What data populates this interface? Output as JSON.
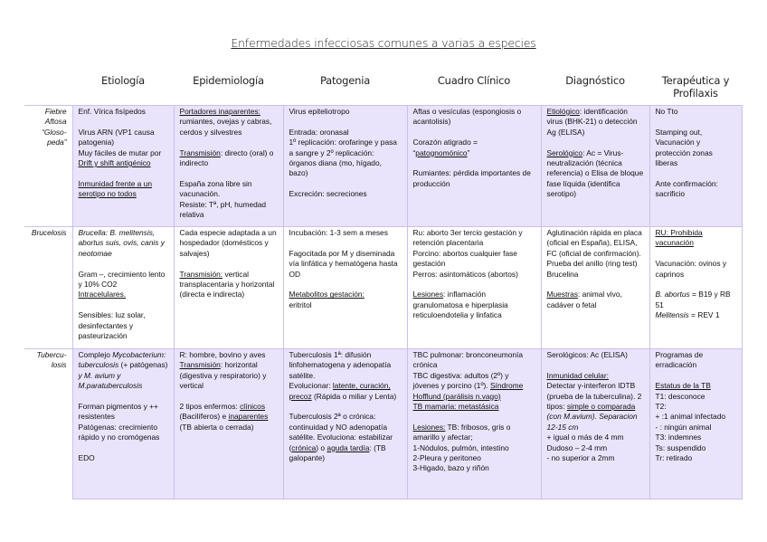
{
  "title": "Enfermedades infecciosas comunes a varias a especies",
  "columns": [
    "Etiología",
    "Epidemiología",
    "Patogenia",
    "Cuadro Clínico",
    "Diagnóstico",
    "Terapéutica y Profilaxis"
  ],
  "colors": {
    "row_shade": "#e9e4fb",
    "border": "#cdbfe9"
  },
  "rows": [
    {
      "label": "Fiebre Aftosa “Gloso-peda”",
      "shade": true,
      "cells": [
        [
          [
            {
              "t": "Enf. Vírica fisípedos"
            }
          ],
          [],
          [
            {
              "t": "Virus ARN (VP1 causa patogenia)"
            }
          ],
          [
            {
              "t": "Muy fáciles de mutar por "
            },
            {
              "t": "Drift y shift antigénico",
              "s": "u"
            }
          ],
          [],
          [
            {
              "t": "Inmunidad frente a un serotipo no todos",
              "s": "u"
            }
          ]
        ],
        [
          [
            {
              "t": "Portadores inaparentes:",
              "s": "u"
            },
            {
              "t": " rumiantes, ovejas y cabras, cerdos y silvestres"
            }
          ],
          [],
          [
            {
              "t": "Transmisión",
              "s": "u"
            },
            {
              "t": ": directo (oral) o indirecto"
            }
          ],
          [],
          [
            {
              "t": "España zona libre sin vacunación."
            }
          ],
          [
            {
              "t": "Resiste: Tª, pH, humedad relativa"
            }
          ]
        ],
        [
          [
            {
              "t": "Virus epiteliotropo"
            }
          ],
          [],
          [
            {
              "t": "Entrada: oronasal"
            }
          ],
          [
            {
              "t": "1º replicación: orofaringe y pasa a sangre y 2º replicación: órganos diana (mo, hígado, bazo)"
            }
          ],
          [],
          [
            {
              "t": "Excreción: secreciones"
            }
          ]
        ],
        [
          [
            {
              "t": "Aftas o vesículas (espongiosis o acantolisis)"
            }
          ],
          [],
          [
            {
              "t": "Corazón atigrado = “"
            },
            {
              "t": "patognomónico",
              "s": "u"
            },
            {
              "t": "”"
            }
          ],
          [],
          [
            {
              "t": "Rumiantes: pérdida importantes de producción"
            }
          ]
        ],
        [
          [
            {
              "t": "Etiológico",
              "s": "u"
            },
            {
              "t": ": identificación virus (BHK-21) o detección Ag (ELISA)"
            }
          ],
          [],
          [
            {
              "t": "Serológico",
              "s": "u"
            },
            {
              "t": ": Ac = Virus-neutralización (técnica referencia) o Elisa de bloque fase líquida (identifica serotipo)"
            }
          ]
        ],
        [
          [
            {
              "t": "No Tto"
            }
          ],
          [],
          [
            {
              "t": "Stamping out, Vacunación y protección zonas liberas"
            }
          ],
          [],
          [
            {
              "t": "Ante confirmación: sacrificio"
            }
          ]
        ]
      ]
    },
    {
      "label": "Brucelosis",
      "shade": false,
      "cells": [
        [
          [
            {
              "t": "Brucella: B. melitensis, abortus suis, ovis, canis y neotomae",
              "s": "i"
            }
          ],
          [],
          [
            {
              "t": "Gram –, crecimiento lento y 10% CO2"
            }
          ],
          [
            {
              "t": "Intracelulares.",
              "s": "u"
            }
          ],
          [],
          [
            {
              "t": "Sensibles: luz solar, desinfectantes y pasteurización"
            }
          ]
        ],
        [
          [
            {
              "t": "Cada especie adaptada a un hospedador (domésticos y salvajes)"
            }
          ],
          [],
          [
            {
              "t": "Transmisión:",
              "s": "u"
            },
            {
              "t": " vertical transplacentaria y horizontal (directa e indirecta)"
            }
          ]
        ],
        [
          [
            {
              "t": "Incubación: 1-3 sem a meses"
            }
          ],
          [],
          [
            {
              "t": "Fagocitada por M y diseminada vía linfática y hematógena hasta OD"
            }
          ],
          [],
          [
            {
              "t": "Metabolitos gestación:",
              "s": "u"
            }
          ],
          [
            {
              "t": "eritritol"
            }
          ]
        ],
        [
          [
            {
              "t": "Ru: aborto 3er tercio gestación y retención placentaria"
            }
          ],
          [
            {
              "t": "Porcino: abortos cualquier fase gestación"
            }
          ],
          [
            {
              "t": "Perros: asintomáticos (abortos)"
            }
          ],
          [],
          [
            {
              "t": "Lesiones",
              "s": "u"
            },
            {
              "t": ": inflamación granulomatosa e hiperplasia reticuloendotelia y linfatica"
            }
          ]
        ],
        [
          [
            {
              "t": "Aglutinación rápida en placa (oficial en España), ELISA, FC (oficial de confirmación)."
            }
          ],
          [
            {
              "t": "Prueba del anillo (ring test)"
            }
          ],
          [
            {
              "t": "Brucelina"
            }
          ],
          [],
          [
            {
              "t": "Muestras",
              "s": "u"
            },
            {
              "t": ": animal vivo, cadáver o fetal"
            }
          ]
        ],
        [
          [
            {
              "t": "RU: Prohibida vacunación",
              "s": "u"
            }
          ],
          [],
          [
            {
              "t": "Vacunación: ovinos y caprinos"
            }
          ],
          [],
          [
            {
              "t": "B. abortus",
              "s": "i"
            },
            {
              "t": " = B19 y RB 51"
            }
          ],
          [
            {
              "t": "Melitensis",
              "s": "i"
            },
            {
              "t": " = REV 1"
            }
          ]
        ]
      ]
    },
    {
      "label": "Tubercu-losis",
      "shade": true,
      "cells": [
        [
          [
            {
              "t": "Complejo "
            },
            {
              "t": "Mycobacterium: tuberculosis",
              "s": "i"
            },
            {
              "t": " (+ patógenas) "
            },
            {
              "t": "y M. avium y M.paratuberculosis",
              "s": "i"
            }
          ],
          [],
          [
            {
              "t": "Forman pigmentos y ++ resistentes"
            }
          ],
          [
            {
              "t": "Patógenas: crecimiento rápido y no cromógenas"
            }
          ],
          [],
          [
            {
              "t": "EDO"
            }
          ]
        ],
        [
          [
            {
              "t": "R: hombre, bovino y aves"
            }
          ],
          [
            {
              "t": "Transmisión",
              "s": "u"
            },
            {
              "t": ": horizontal (digestiva y respiratorio) y vertical"
            }
          ],
          [],
          [
            {
              "t": "2 tipos enfermos: "
            },
            {
              "t": "clínicos",
              "s": "u"
            },
            {
              "t": " (Bacilíferos) e "
            },
            {
              "t": "inaparentes",
              "s": "u"
            },
            {
              "t": " (TB abierta o cerrada)"
            }
          ]
        ],
        [
          [
            {
              "t": "Tuberculosis 1ª: difusión linfohematogena y adenopatía satélite."
            }
          ],
          [
            {
              "t": "Evolucionar: "
            },
            {
              "t": "latente, curación, precoz",
              "s": "u"
            },
            {
              "t": " (Rápida o miliar y Lenta)"
            }
          ],
          [],
          [
            {
              "t": "Tuberculosis 2ª o crónica: continuidad y NO adenopatía satélite. Evoluciona: estabilizar ("
            },
            {
              "t": "crónica",
              "s": "u"
            },
            {
              "t": ") o "
            },
            {
              "t": "aguda tardía",
              "s": "u"
            },
            {
              "t": ": (TB galopante)"
            }
          ]
        ],
        [
          [
            {
              "t": "TBC pulmonar: bronconeumonía crónica"
            }
          ],
          [
            {
              "t": "TBC digestiva: adultos (2º) y jóvenes y porcino (1º). "
            },
            {
              "t": "Síndrome Hofflund (parálisis n.vago)",
              "s": "u"
            }
          ],
          [
            {
              "t": "TB mamaria: metastásica",
              "s": "u"
            }
          ],
          [],
          [
            {
              "t": "Lesiones:",
              "s": "u"
            },
            {
              "t": " TB: fribosos, gris o amarillo y afectar;"
            }
          ],
          [
            {
              "t": "1-Nódulos, pulmón, intestino"
            }
          ],
          [
            {
              "t": " 2-Pleura y peritoneo"
            }
          ],
          [
            {
              "t": "3-Higado, bazo y riñón"
            }
          ]
        ],
        [
          [
            {
              "t": "Serológicos: Ac (ELISA)"
            }
          ],
          [],
          [
            {
              "t": "Inmunidad celular:",
              "s": "u"
            }
          ],
          [
            {
              "t": "Detectar γ-interferon IDTB (prueba de la tuberculina). 2 tipos: "
            },
            {
              "t": "simple o comparada",
              "s": "u"
            },
            {
              "t": " (con M.avium). Separacion 12-15 cm",
              "s": "i"
            }
          ],
          [
            {
              "t": "+  igual o más de 4 mm"
            }
          ],
          [
            {
              "t": "Dudoso – 2-4 mm"
            }
          ],
          [
            {
              "t": "- no superior a 2mm"
            }
          ]
        ],
        [
          [
            {
              "t": "Programas de erradicación"
            }
          ],
          [],
          [
            {
              "t": "Estatus de la TB",
              "s": "u"
            }
          ],
          [
            {
              "t": "T1: desconoce"
            }
          ],
          [
            {
              "t": "T2:"
            }
          ],
          [
            {
              "t": " + :1 animal infectado"
            }
          ],
          [
            {
              "t": "- : ningún animal"
            }
          ],
          [
            {
              "t": "T3: indemnes"
            }
          ],
          [
            {
              "t": "Ts: suspendido"
            }
          ],
          [
            {
              "t": "Tr: retirado"
            }
          ]
        ]
      ]
    }
  ]
}
